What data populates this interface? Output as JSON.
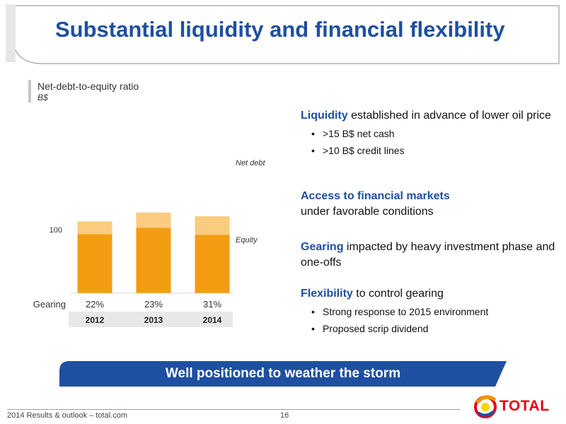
{
  "header": {
    "title": "Substantial liquidity and financial flexibility"
  },
  "chart_header": {
    "title": "Net-debt-to-equity ratio",
    "unit": "B$"
  },
  "chart_data": {
    "type": "bar",
    "stacked": true,
    "categories": [
      "2012",
      "2013",
      "2014"
    ],
    "series": [
      {
        "name": "Equity",
        "values": [
          93,
          103,
          92
        ],
        "color": "#f39c12"
      },
      {
        "name": "Net debt",
        "values": [
          20,
          24,
          29
        ],
        "color": "#fbcb7f"
      }
    ],
    "gearing_label": "Gearing",
    "gearing": [
      "22%",
      "23%",
      "31%"
    ],
    "ytick_label": "100",
    "ytick_value": 100,
    "ylim": [
      0,
      130
    ],
    "grid": false,
    "legend_position": "right"
  },
  "right": {
    "liquidity": {
      "keyword": "Liquidity",
      "text": " established in advance of lower oil price",
      "bullets": [
        ">15 B$ net cash",
        ">10 B$ credit lines"
      ]
    },
    "access": {
      "keyword": "Access to financial markets",
      "text": "under favorable conditions"
    },
    "gearing": {
      "keyword": "Gearing",
      "text": " impacted by heavy investment phase and one-offs"
    },
    "flexibility": {
      "keyword": "Flexibility",
      "text": " to control gearing",
      "bullets": [
        "Strong response to 2015 environment",
        "Proposed scrip dividend"
      ]
    }
  },
  "banner": {
    "text": "Well positioned to weather the storm"
  },
  "footer": {
    "left": "2014 Results & outlook – total.com",
    "page": "16"
  },
  "logo": {
    "text": "TOTAL"
  },
  "colors": {
    "title_blue": "#1f4fa0",
    "banner_blue": "#1f4fa0",
    "equity": "#f39c12",
    "net_debt": "#fbcb7f",
    "logo_red": "#e2001a"
  }
}
